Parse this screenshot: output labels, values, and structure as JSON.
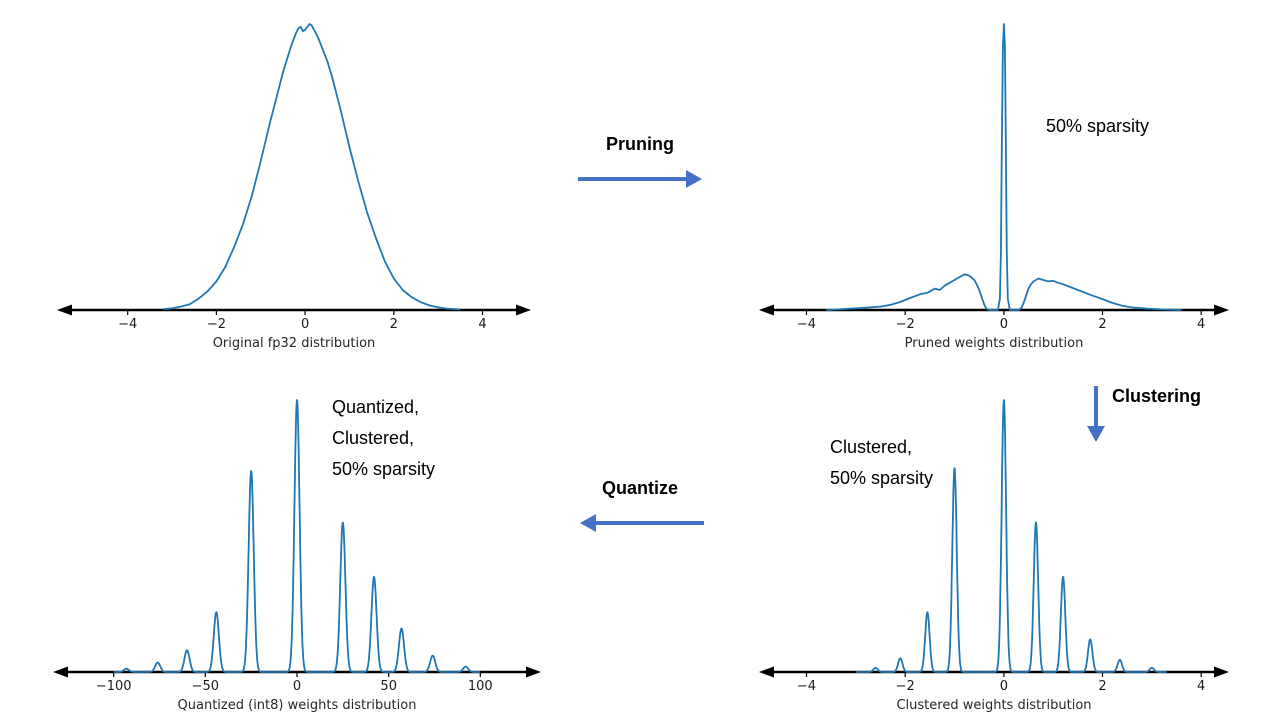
{
  "colors": {
    "background": "#ffffff",
    "curve": "#1f77b4",
    "flow_arrow": "#4472c4",
    "axis": "#000000",
    "tick_text": "#1a1a1a"
  },
  "flow": {
    "pruning_label": "Pruning",
    "clustering_label": "Clustering",
    "quantize_label": "Quantize"
  },
  "notes": {
    "sparsity": "50% sparsity",
    "clustered_lines": [
      "Clustered,",
      "50% sparsity"
    ],
    "quantized_lines": [
      "Quantized,",
      "Clustered,",
      "50% sparsity"
    ]
  },
  "chart_data": [
    {
      "type": "line",
      "caption": "Original fp32 distribution",
      "xrange": [
        -5.3,
        4.8
      ],
      "ticks": [
        -4,
        -2,
        0,
        2,
        4
      ],
      "tick_labels": [
        "−4",
        "−2",
        "0",
        "2",
        "4"
      ],
      "ylim": [
        0,
        1.05
      ],
      "points": [
        [
          -3.2,
          0.003
        ],
        [
          -3.0,
          0.006
        ],
        [
          -2.8,
          0.012
        ],
        [
          -2.6,
          0.02
        ],
        [
          -2.4,
          0.04
        ],
        [
          -2.2,
          0.065
        ],
        [
          -2.0,
          0.1
        ],
        [
          -1.8,
          0.15
        ],
        [
          -1.6,
          0.22
        ],
        [
          -1.4,
          0.3
        ],
        [
          -1.2,
          0.4
        ],
        [
          -1.0,
          0.52
        ],
        [
          -0.8,
          0.65
        ],
        [
          -0.6,
          0.77
        ],
        [
          -0.5,
          0.83
        ],
        [
          -0.4,
          0.88
        ],
        [
          -0.3,
          0.93
        ],
        [
          -0.2,
          0.97
        ],
        [
          -0.15,
          0.985
        ],
        [
          -0.1,
          0.99
        ],
        [
          -0.05,
          0.975
        ],
        [
          0.0,
          0.98
        ],
        [
          0.05,
          0.99
        ],
        [
          0.1,
          1.0
        ],
        [
          0.15,
          0.995
        ],
        [
          0.2,
          0.98
        ],
        [
          0.3,
          0.95
        ],
        [
          0.4,
          0.91
        ],
        [
          0.5,
          0.87
        ],
        [
          0.6,
          0.82
        ],
        [
          0.8,
          0.7
        ],
        [
          1.0,
          0.57
        ],
        [
          1.2,
          0.45
        ],
        [
          1.4,
          0.34
        ],
        [
          1.6,
          0.25
        ],
        [
          1.8,
          0.17
        ],
        [
          2.0,
          0.11
        ],
        [
          2.2,
          0.07
        ],
        [
          2.4,
          0.045
        ],
        [
          2.6,
          0.028
        ],
        [
          2.8,
          0.016
        ],
        [
          3.0,
          0.009
        ],
        [
          3.2,
          0.005
        ],
        [
          3.5,
          0.002
        ]
      ]
    },
    {
      "type": "line",
      "caption": "Pruned weights distribution",
      "xrange": [
        -4.7,
        4.3
      ],
      "ticks": [
        -4,
        -2,
        0,
        2,
        4
      ],
      "tick_labels": [
        "−4",
        "−2",
        "0",
        "2",
        "4"
      ],
      "ylim": [
        0,
        1.05
      ],
      "points": [
        [
          -3.6,
          0.0
        ],
        [
          -3.2,
          0.004
        ],
        [
          -2.8,
          0.008
        ],
        [
          -2.5,
          0.012
        ],
        [
          -2.3,
          0.018
        ],
        [
          -2.1,
          0.028
        ],
        [
          -1.9,
          0.042
        ],
        [
          -1.7,
          0.055
        ],
        [
          -1.55,
          0.06
        ],
        [
          -1.4,
          0.075
        ],
        [
          -1.3,
          0.07
        ],
        [
          -1.2,
          0.085
        ],
        [
          -1.1,
          0.095
        ],
        [
          -1.0,
          0.105
        ],
        [
          -0.9,
          0.115
        ],
        [
          -0.8,
          0.125
        ],
        [
          -0.7,
          0.12
        ],
        [
          -0.6,
          0.105
        ],
        [
          -0.55,
          0.09
        ],
        [
          -0.5,
          0.07
        ],
        [
          -0.45,
          0.045
        ],
        [
          -0.4,
          0.02
        ],
        [
          -0.36,
          0.006
        ],
        [
          -0.3,
          0.0
        ],
        [
          -0.12,
          0.0
        ],
        [
          -0.08,
          0.04
        ],
        [
          -0.06,
          0.2
        ],
        [
          -0.04,
          0.6
        ],
        [
          -0.02,
          0.92
        ],
        [
          0.0,
          1.0
        ],
        [
          0.02,
          0.92
        ],
        [
          0.04,
          0.6
        ],
        [
          0.06,
          0.2
        ],
        [
          0.08,
          0.04
        ],
        [
          0.12,
          0.0
        ],
        [
          0.3,
          0.0
        ],
        [
          0.36,
          0.008
        ],
        [
          0.4,
          0.025
        ],
        [
          0.45,
          0.05
        ],
        [
          0.5,
          0.075
        ],
        [
          0.55,
          0.09
        ],
        [
          0.6,
          0.1
        ],
        [
          0.7,
          0.11
        ],
        [
          0.8,
          0.105
        ],
        [
          0.9,
          0.1
        ],
        [
          1.0,
          0.102
        ],
        [
          1.1,
          0.095
        ],
        [
          1.2,
          0.09
        ],
        [
          1.35,
          0.08
        ],
        [
          1.5,
          0.07
        ],
        [
          1.65,
          0.06
        ],
        [
          1.8,
          0.05
        ],
        [
          2.0,
          0.038
        ],
        [
          2.2,
          0.025
        ],
        [
          2.4,
          0.015
        ],
        [
          2.6,
          0.009
        ],
        [
          2.9,
          0.005
        ],
        [
          3.2,
          0.002
        ],
        [
          3.6,
          0.0
        ]
      ]
    },
    {
      "type": "spikes",
      "caption": "Clustered weights distribution",
      "xrange": [
        -4.7,
        4.3
      ],
      "curve_range": [
        -3.0,
        3.3
      ],
      "ticks": [
        -4,
        -2,
        0,
        2,
        4
      ],
      "tick_labels": [
        "−4",
        "−2",
        "0",
        "2",
        "4"
      ],
      "ylim": [
        0,
        1.05
      ],
      "sigma": 0.045,
      "spikes": [
        [
          -2.6,
          0.015
        ],
        [
          -2.1,
          0.05
        ],
        [
          -1.55,
          0.22
        ],
        [
          -1.0,
          0.75
        ],
        [
          0.0,
          1.0
        ],
        [
          0.65,
          0.55
        ],
        [
          1.2,
          0.35
        ],
        [
          1.75,
          0.12
        ],
        [
          2.35,
          0.045
        ],
        [
          3.0,
          0.015
        ]
      ]
    },
    {
      "type": "spikes",
      "caption": "Quantized (int8) weights distribution",
      "xrange": [
        -126,
        126
      ],
      "curve_range": [
        -100,
        100
      ],
      "ticks": [
        -100,
        -50,
        0,
        50,
        100
      ],
      "tick_labels": [
        "−100",
        "−50",
        "0",
        "50",
        "100"
      ],
      "ylim": [
        0,
        1.05
      ],
      "sigma": 1.4,
      "spikes": [
        [
          -93,
          0.012
        ],
        [
          -76,
          0.035
        ],
        [
          -60,
          0.08
        ],
        [
          -44,
          0.22
        ],
        [
          -25,
          0.74
        ],
        [
          0,
          1.0
        ],
        [
          25,
          0.55
        ],
        [
          42,
          0.35
        ],
        [
          57,
          0.16
        ],
        [
          74,
          0.06
        ],
        [
          92,
          0.02
        ]
      ]
    }
  ]
}
